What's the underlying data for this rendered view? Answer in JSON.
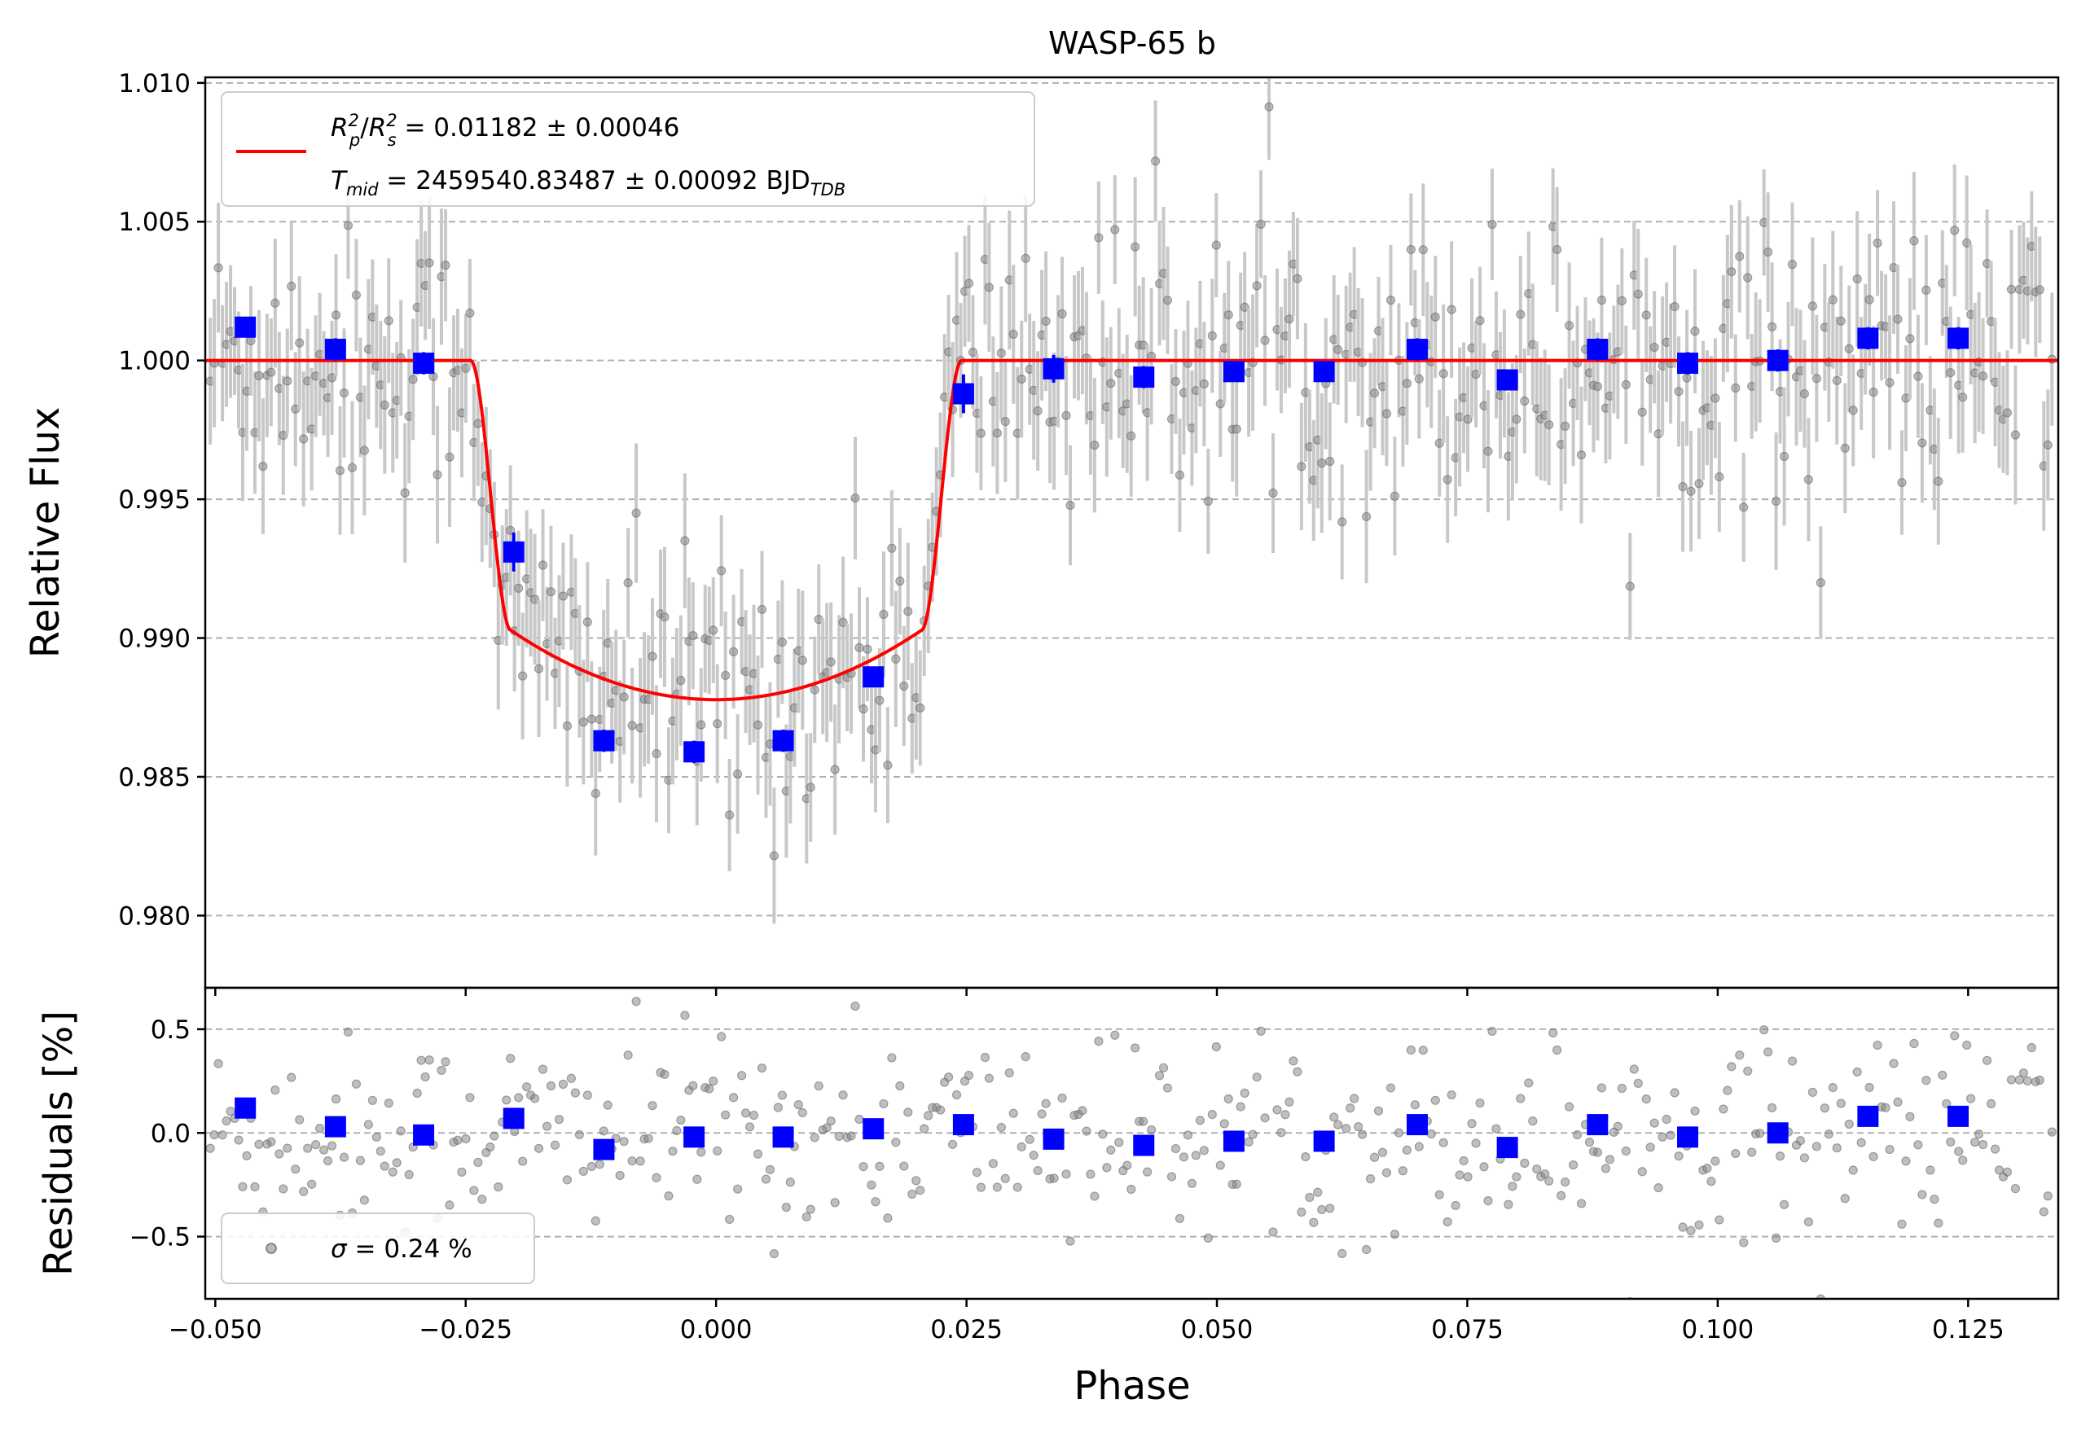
{
  "chart_data": [
    {
      "panel": "light-curve",
      "type": "scatter",
      "title": "WASP-65 b",
      "xlabel": "Phase",
      "ylabel": "Relative Flux",
      "xlim": [
        -0.051,
        0.134
      ],
      "ylim": [
        0.9774,
        1.0102
      ],
      "xticks": [
        -0.05,
        -0.025,
        0.0,
        0.025,
        0.05,
        0.075,
        0.1,
        0.125
      ],
      "xtick_labels": [
        "−0.050",
        "−0.025",
        "0.000",
        "0.025",
        "0.050",
        "0.075",
        "0.100",
        "0.125"
      ],
      "yticks": [
        0.98,
        0.985,
        0.99,
        0.995,
        1.0,
        1.005,
        1.01
      ],
      "ytick_labels": [
        "0.980",
        "0.985",
        "0.990",
        "0.995",
        "1.000",
        "1.005",
        "1.010"
      ],
      "grid": "horizontal dashed",
      "legend": {
        "placement": "top-left",
        "line1_main": "R",
        "line1_value": " = 0.01182 ± 0.00046",
        "line2_main": "T",
        "line2_sub": "mid",
        "line2_value": " = 2459540.83487 ± 0.00092 BJD",
        "line2_unit_sub": "TDB"
      },
      "model": {
        "name": "transit model",
        "baseline": 1.0,
        "depth": 0.01182,
        "t_mid_phase": 0.0,
        "ingress_start": -0.0245,
        "full_start": -0.0205,
        "full_end": 0.0205,
        "egress_end": 0.0245,
        "color": "#ff0000"
      },
      "raw_points": {
        "color": "#808080",
        "errorbar_color": "#c8c8c8",
        "typical_error": 0.0022,
        "x_start": -0.0505,
        "x_step": 0.000405,
        "count": 455
      },
      "binned_points": {
        "color": "#0000ff",
        "x": [
          -0.047,
          -0.038,
          -0.0292,
          -0.0202,
          -0.0112,
          -0.0022,
          0.0067,
          0.0157,
          0.0247,
          0.0337,
          0.0427,
          0.0517,
          0.0607,
          0.07,
          0.079,
          0.088,
          0.097,
          0.106,
          0.115,
          0.124
        ],
        "y": [
          1.0012,
          1.0004,
          0.9999,
          0.9931,
          0.9863,
          0.9859,
          0.9863,
          0.9886,
          0.9988,
          0.9997,
          0.9994,
          0.9996,
          0.9996,
          1.0004,
          0.9993,
          1.0004,
          0.9999,
          1.0,
          1.0008,
          1.0008
        ],
        "yerr": [
          0.0003,
          0.0004,
          0.0004,
          0.0007,
          0.0004,
          0.0004,
          0.0004,
          0.0003,
          0.0007,
          0.0005,
          0.0004,
          0.0003,
          0.0003,
          0.0004,
          0.0003,
          0.0004,
          0.0004,
          0.0004,
          0.0004,
          0.0004
        ]
      }
    },
    {
      "panel": "residuals",
      "type": "scatter",
      "xlabel": "Phase",
      "ylabel": "Residuals [%]",
      "xlim": [
        -0.051,
        0.134
      ],
      "ylim": [
        -0.8,
        0.7
      ],
      "yticks": [
        -0.5,
        0.0,
        0.5
      ],
      "ytick_labels": [
        "−0.5",
        "0.0",
        "0.5"
      ],
      "grid": "horizontal dashed",
      "legend": {
        "placement": "bottom-left",
        "label_main": "σ",
        "label_value": " = 0.24 %"
      },
      "binned_points": {
        "color": "#0000ff",
        "x": [
          -0.047,
          -0.038,
          -0.0292,
          -0.0202,
          -0.0112,
          -0.0022,
          0.0067,
          0.0157,
          0.0247,
          0.0337,
          0.0427,
          0.0517,
          0.0607,
          0.07,
          0.079,
          0.088,
          0.097,
          0.106,
          0.115,
          0.124
        ],
        "y": [
          0.12,
          0.03,
          -0.01,
          0.07,
          -0.08,
          -0.02,
          -0.02,
          0.02,
          0.04,
          -0.03,
          -0.06,
          -0.04,
          -0.04,
          0.04,
          -0.07,
          0.04,
          -0.02,
          0.0,
          0.08,
          0.08
        ]
      },
      "raw_points": {
        "color": "#808080",
        "sigma_percent": 0.24
      }
    }
  ]
}
